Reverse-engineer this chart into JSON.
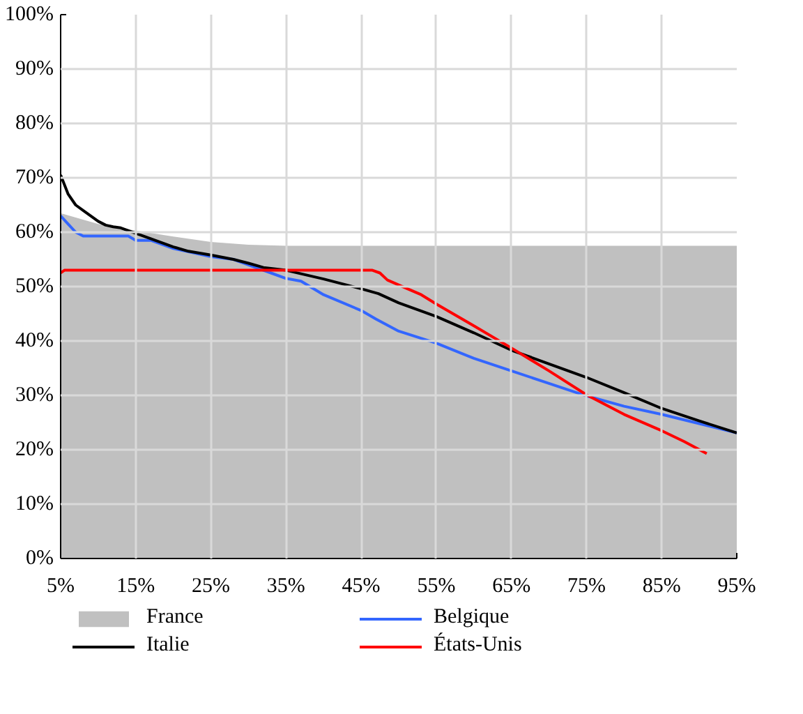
{
  "chart_data": {
    "type": "line",
    "xlim": [
      5,
      95
    ],
    "xticks": [
      {
        "value": 5,
        "label": "5%"
      },
      {
        "value": 15,
        "label": "15%"
      },
      {
        "value": 25,
        "label": "25%"
      },
      {
        "value": 35,
        "label": "35%"
      },
      {
        "value": 45,
        "label": "45%"
      },
      {
        "value": 55,
        "label": "55%"
      },
      {
        "value": 65,
        "label": "65%"
      },
      {
        "value": 75,
        "label": "75%"
      },
      {
        "value": 85,
        "label": "85%"
      },
      {
        "value": 95,
        "label": "95%"
      }
    ],
    "ylim": [
      0,
      100
    ],
    "yticks": [
      {
        "value": 0,
        "label": "0%"
      },
      {
        "value": 10,
        "label": "10%"
      },
      {
        "value": 20,
        "label": "20%"
      },
      {
        "value": 30,
        "label": "30%"
      },
      {
        "value": 40,
        "label": "40%"
      },
      {
        "value": 50,
        "label": "50%"
      },
      {
        "value": 60,
        "label": "60%"
      },
      {
        "value": 70,
        "label": "70%"
      },
      {
        "value": 80,
        "label": "80%"
      },
      {
        "value": 90,
        "label": "90%"
      },
      {
        "value": 100,
        "label": "100%"
      }
    ],
    "grid": true,
    "legend": "bottom",
    "series": [
      {
        "name": "France",
        "type": "area",
        "color": "#c0c0c0",
        "x": [
          5,
          10,
          15,
          20,
          25,
          30,
          35,
          40,
          95
        ],
        "values": [
          63.5,
          61.5,
          60.3,
          59.2,
          58.2,
          57.7,
          57.5,
          57.5,
          57.5
        ]
      },
      {
        "name": "Belgique",
        "color": "#3366ff",
        "x": [
          5,
          6,
          7,
          8,
          14,
          15,
          17,
          20,
          25,
          28,
          30,
          33,
          35,
          37,
          40,
          45,
          47,
          50,
          55,
          60,
          65,
          70,
          75,
          80,
          85,
          90,
          95
        ],
        "values": [
          63,
          61.5,
          60,
          59.3,
          59.3,
          58.5,
          58.5,
          57,
          55.5,
          55,
          54,
          52.5,
          51.5,
          51,
          48.5,
          45.6,
          44,
          41.8,
          39.6,
          36.8,
          34.5,
          32.2,
          29.9,
          28,
          26.5,
          24.8,
          23.1
        ]
      },
      {
        "name": "Italie",
        "color": "#000000",
        "x": [
          5,
          6,
          7,
          8,
          9,
          10,
          11,
          12,
          13,
          15,
          17,
          20,
          22,
          25,
          28,
          30,
          32,
          35,
          40,
          45,
          47.3,
          50,
          55,
          60,
          65,
          70,
          75,
          80,
          85,
          90,
          95
        ],
        "values": [
          70.5,
          67,
          65,
          64,
          63,
          62,
          61.3,
          61,
          60.8,
          59.8,
          58.8,
          57.3,
          56.5,
          55.8,
          55,
          54.3,
          53.5,
          53,
          51.4,
          49.6,
          48.7,
          47,
          44.5,
          41.5,
          38.3,
          35.8,
          33.3,
          30.5,
          27.6,
          25.3,
          23.1
        ]
      },
      {
        "name": "États-Unis",
        "color": "#ff0000",
        "x": [
          5,
          5.5,
          46.5,
          47.5,
          48.5,
          51,
          53,
          55,
          60,
          65,
          70,
          75,
          80,
          85,
          88,
          91
        ],
        "values": [
          52.5,
          53,
          53,
          52.5,
          51.2,
          49.7,
          48.5,
          46.8,
          42.8,
          38.7,
          34.5,
          30.1,
          26.5,
          23.5,
          21.5,
          19.3
        ]
      }
    ]
  }
}
